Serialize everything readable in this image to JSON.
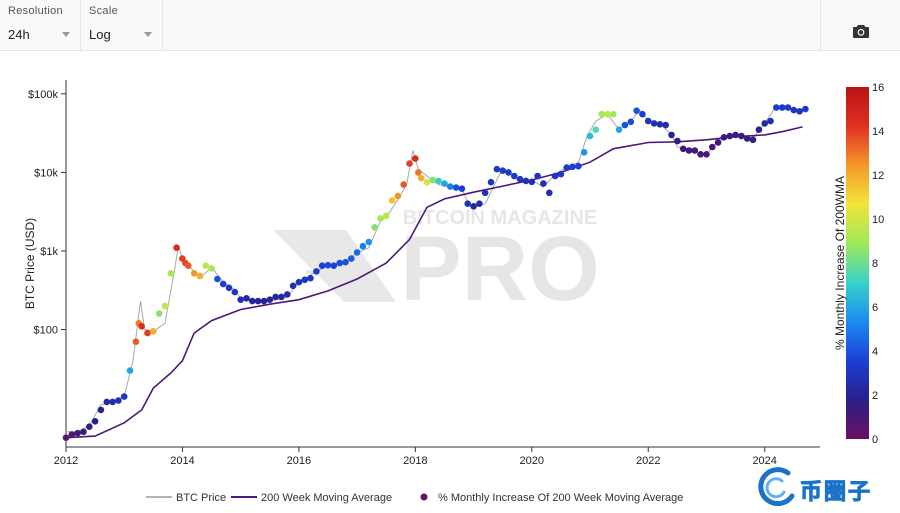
{
  "controls": {
    "resolution": {
      "label": "Resolution",
      "value": "24h"
    },
    "scale": {
      "label": "Scale",
      "value": "Log"
    }
  },
  "icons": {
    "camera": "camera-icon"
  },
  "watermark": {
    "line1": "BITCOIN MAGAZINE",
    "line2": "PRO"
  },
  "brand": {
    "text": "币圈子"
  },
  "chart_data": {
    "type": "scatter",
    "ylabel": "BTC Price (USD)",
    "yscale": "log",
    "ylim": [
      3.2,
      150000
    ],
    "xlim": [
      2012.0,
      2024.95
    ],
    "x_ticks": [
      {
        "value": 2012,
        "label": "2012"
      },
      {
        "value": 2014,
        "label": "2014"
      },
      {
        "value": 2016,
        "label": "2016"
      },
      {
        "value": 2018,
        "label": "2018"
      },
      {
        "value": 2020,
        "label": "2020"
      },
      {
        "value": 2022,
        "label": "2022"
      },
      {
        "value": 2024,
        "label": "2024"
      }
    ],
    "y_ticks": [
      {
        "value": 100,
        "label": "$100"
      },
      {
        "value": 1000,
        "label": "$1k"
      },
      {
        "value": 10000,
        "label": "$10k"
      },
      {
        "value": 100000,
        "label": "$100k"
      }
    ],
    "colorbar": {
      "title": "% Monthly Increase Of 200WMA",
      "min": 0,
      "max": 16,
      "ticks": [
        0,
        2,
        4,
        6,
        8,
        10,
        12,
        14,
        16
      ],
      "colors": [
        "#6b1060",
        "#2a1f8a",
        "#1a3fd6",
        "#1a8cf0",
        "#39d2c8",
        "#9ee85a",
        "#f2e53a",
        "#f5972a",
        "#e03020",
        "#b81414"
      ]
    },
    "legend": {
      "position": "bottom",
      "entries": [
        {
          "name": "BTC Price",
          "color": "#9a9a9a",
          "kind": "line"
        },
        {
          "name": "200 Week Moving Average",
          "color": "#4b1a78",
          "kind": "line"
        },
        {
          "name": "% Monthly Increase Of 200 Week Moving Average",
          "color": "#6b1060",
          "kind": "marker"
        }
      ]
    },
    "series": [
      {
        "name": "BTC Price",
        "x": [
          2012.0,
          2012.2,
          2012.4,
          2012.6,
          2012.8,
          2013.0,
          2013.15,
          2013.28,
          2013.35,
          2013.5,
          2013.7,
          2013.85,
          2013.93,
          2014.0,
          2014.15,
          2014.3,
          2014.5,
          2014.7,
          2014.9,
          2015.0,
          2015.2,
          2015.5,
          2015.8,
          2016.0,
          2016.3,
          2016.5,
          2016.8,
          2017.0,
          2017.2,
          2017.4,
          2017.5,
          2017.7,
          2017.85,
          2017.96,
          2018.05,
          2018.2,
          2018.4,
          2018.6,
          2018.8,
          2018.92,
          2019.0,
          2019.2,
          2019.4,
          2019.5,
          2019.7,
          2019.9,
          2020.0,
          2020.2,
          2020.4,
          2020.6,
          2020.8,
          2020.95,
          2021.1,
          2021.3,
          2021.5,
          2021.7,
          2021.85,
          2022.0,
          2022.2,
          2022.4,
          2022.5,
          2022.7,
          2022.9,
          2023.0,
          2023.2,
          2023.4,
          2023.6,
          2023.8,
          2024.0,
          2024.2,
          2024.4,
          2024.6,
          2024.7
        ],
        "y": [
          5,
          5,
          6,
          11,
          12,
          14,
          40,
          230,
          100,
          95,
          120,
          500,
          1150,
          800,
          600,
          450,
          620,
          400,
          320,
          250,
          240,
          230,
          260,
          400,
          550,
          650,
          720,
          950,
          1100,
          2400,
          2700,
          4500,
          7000,
          19000,
          11000,
          9000,
          7000,
          6500,
          6300,
          3800,
          3600,
          4000,
          8000,
          11500,
          8500,
          7200,
          8000,
          6500,
          9500,
          11500,
          13500,
          29000,
          45000,
          55000,
          35000,
          45000,
          62000,
          46000,
          42000,
          30000,
          21000,
          20000,
          17000,
          17000,
          25000,
          28000,
          30000,
          27000,
          42000,
          70000,
          67000,
          60000,
          64000
        ]
      },
      {
        "name": "200 Week Moving Average",
        "x": [
          2012.0,
          2012.5,
          2013.0,
          2013.3,
          2013.5,
          2013.8,
          2014.0,
          2014.2,
          2014.5,
          2015.0,
          2015.5,
          2016.0,
          2016.5,
          2017.0,
          2017.5,
          2017.9,
          2018.2,
          2018.5,
          2019.0,
          2019.5,
          2020.0,
          2020.5,
          2021.0,
          2021.4,
          2022.0,
          2022.5,
          2023.0,
          2023.5,
          2024.0,
          2024.3,
          2024.65
        ],
        "y": [
          4.2,
          4.4,
          6.5,
          9.5,
          18,
          28,
          40,
          90,
          130,
          180,
          210,
          240,
          310,
          440,
          700,
          1400,
          3600,
          4600,
          5600,
          6700,
          8000,
          10000,
          13500,
          20000,
          24000,
          24500,
          26000,
          28500,
          30000,
          33000,
          38000
        ]
      },
      {
        "name": "% Monthly Increase Of 200 Week Moving Average",
        "x": [
          2012.0,
          2012.1,
          2012.2,
          2012.3,
          2012.4,
          2012.5,
          2012.6,
          2012.7,
          2012.8,
          2012.9,
          2013.0,
          2013.1,
          2013.2,
          2013.25,
          2013.3,
          2013.4,
          2013.5,
          2013.6,
          2013.7,
          2013.8,
          2013.9,
          2014.0,
          2014.05,
          2014.1,
          2014.2,
          2014.3,
          2014.4,
          2014.5,
          2014.6,
          2014.7,
          2014.8,
          2014.9,
          2015.0,
          2015.1,
          2015.2,
          2015.3,
          2015.4,
          2015.5,
          2015.6,
          2015.7,
          2015.8,
          2015.9,
          2016.0,
          2016.1,
          2016.2,
          2016.3,
          2016.4,
          2016.5,
          2016.6,
          2016.7,
          2016.8,
          2016.9,
          2017.0,
          2017.1,
          2017.2,
          2017.3,
          2017.4,
          2017.5,
          2017.6,
          2017.7,
          2017.8,
          2017.9,
          2018.0,
          2018.05,
          2018.1,
          2018.2,
          2018.3,
          2018.4,
          2018.5,
          2018.6,
          2018.7,
          2018.8,
          2018.9,
          2019.0,
          2019.1,
          2019.2,
          2019.3,
          2019.4,
          2019.5,
          2019.6,
          2019.7,
          2019.8,
          2019.9,
          2020.0,
          2020.1,
          2020.2,
          2020.3,
          2020.4,
          2020.5,
          2020.6,
          2020.7,
          2020.8,
          2020.9,
          2021.0,
          2021.1,
          2021.2,
          2021.3,
          2021.4,
          2021.5,
          2021.6,
          2021.7,
          2021.8,
          2021.9,
          2022.0,
          2022.1,
          2022.2,
          2022.3,
          2022.4,
          2022.5,
          2022.6,
          2022.7,
          2022.8,
          2022.9,
          2023.0,
          2023.1,
          2023.2,
          2023.3,
          2023.4,
          2023.5,
          2023.6,
          2023.7,
          2023.8,
          2023.9,
          2024.0,
          2024.1,
          2024.2,
          2024.3,
          2024.4,
          2024.5,
          2024.6,
          2024.7
        ],
        "y": [
          4.2,
          4.6,
          4.8,
          5.0,
          5.8,
          6.8,
          9.5,
          12,
          12,
          12.5,
          14,
          30,
          70,
          120,
          110,
          90,
          95,
          160,
          200,
          520,
          1100,
          800,
          700,
          650,
          520,
          480,
          650,
          600,
          440,
          380,
          340,
          300,
          240,
          250,
          230,
          230,
          230,
          240,
          260,
          260,
          280,
          360,
          400,
          430,
          450,
          550,
          650,
          660,
          650,
          700,
          720,
          800,
          960,
          1150,
          1300,
          2000,
          2600,
          2800,
          4400,
          5000,
          7000,
          13000,
          15000,
          10000,
          8500,
          7500,
          8000,
          7800,
          7200,
          6600,
          6400,
          6200,
          4000,
          3700,
          4000,
          5500,
          7500,
          11000,
          10500,
          10000,
          9000,
          8200,
          7800,
          7600,
          9000,
          7200,
          5500,
          9000,
          9500,
          11500,
          11800,
          12000,
          18000,
          29000,
          35000,
          55000,
          55000,
          55000,
          35000,
          40000,
          44000,
          61000,
          55000,
          45000,
          42000,
          41000,
          40000,
          30000,
          25000,
          20000,
          19000,
          19000,
          17000,
          17000,
          21000,
          24000,
          28000,
          29000,
          30000,
          29000,
          27000,
          26000,
          35000,
          42000,
          45000,
          67000,
          67000,
          67000,
          62000,
          60000,
          64000
        ],
        "c": [
          0.5,
          0.7,
          1.0,
          1.2,
          1.5,
          1.8,
          2.0,
          2.4,
          2.6,
          2.8,
          3.0,
          6.0,
          13.5,
          13,
          14.5,
          14,
          12,
          8.5,
          9.5,
          9.0,
          14.5,
          14.0,
          13.8,
          13.5,
          12.5,
          12.0,
          9.5,
          9.0,
          4.0,
          3.5,
          3.2,
          3.0,
          2.6,
          2.4,
          2.2,
          2.0,
          2.0,
          2.1,
          2.2,
          2.3,
          2.5,
          2.8,
          3.0,
          3.1,
          3.2,
          3.4,
          3.6,
          3.8,
          3.6,
          3.8,
          4.0,
          4.2,
          4.5,
          5.0,
          5.5,
          8.5,
          9.0,
          9.5,
          11.5,
          12.5,
          13.5,
          14.0,
          14.5,
          13.0,
          12.0,
          10.0,
          8.5,
          7.0,
          6.0,
          5.0,
          4.0,
          3.5,
          3.0,
          2.2,
          2.4,
          2.8,
          3.0,
          3.3,
          3.4,
          3.3,
          3.2,
          3.0,
          2.8,
          2.8,
          3.0,
          2.8,
          2.6,
          3.0,
          3.2,
          3.4,
          3.5,
          3.6,
          5.5,
          6.5,
          7.5,
          9.0,
          9.5,
          9.0,
          6.0,
          4.0,
          3.8,
          4.0,
          3.5,
          3.0,
          2.8,
          2.6,
          2.5,
          2.0,
          1.5,
          1.2,
          1.0,
          1.0,
          0.9,
          0.9,
          1.0,
          1.1,
          1.2,
          1.3,
          1.4,
          1.4,
          1.3,
          1.3,
          2.0,
          2.4,
          2.6,
          3.4,
          3.3,
          3.3,
          3.0,
          3.0,
          3.2
        ]
      }
    ]
  }
}
